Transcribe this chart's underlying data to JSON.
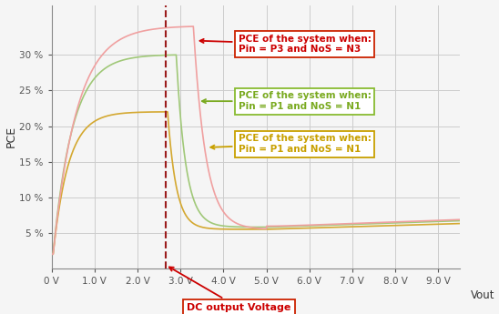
{
  "ylabel": "PCE",
  "xlabel": "Vout",
  "xlim": [
    0,
    9.5
  ],
  "ylim": [
    0,
    37
  ],
  "xticks": [
    0,
    1,
    2,
    3,
    4,
    5,
    6,
    7,
    8,
    9
  ],
  "xtick_labels": [
    "0 V",
    "1.0 V",
    "2.0 V",
    "3.0 V",
    "4.0 V",
    "5.0 V",
    "6.0 V",
    "7.0 V",
    "8.0 V",
    "9.0 V"
  ],
  "yticks": [
    5,
    10,
    15,
    20,
    25,
    30
  ],
  "ytick_labels": [
    "5 %",
    "10 %",
    "15 %",
    "20 %",
    "25 %",
    "30 %"
  ],
  "vline_x": 2.65,
  "vline_color": "#9b1c1c",
  "background_color": "#f5f5f5",
  "grid_color": "#cccccc",
  "curve_red_color": "#f0a0a0",
  "curve_green_color": "#a0c878",
  "curve_yellow_color": "#d4a830",
  "annotation_red_text": "PCE of the system when:\nPin = P3 and NoS = N3",
  "annotation_green_text": "PCE of the system when:\nPin = P1 and NoS = N1",
  "annotation_yellow_text": "PCE of the system when:\nPin = P1 and NoS = N1",
  "annotation_dc_text": "DC output Voltage",
  "annotation_red_color": "#cc0000",
  "annotation_green_color": "#7aaa20",
  "annotation_yellow_color": "#c8a000",
  "annotation_box_red_edge": "#cc2200",
  "annotation_box_green_edge": "#88bb30",
  "annotation_box_yellow_edge": "#c8a000"
}
